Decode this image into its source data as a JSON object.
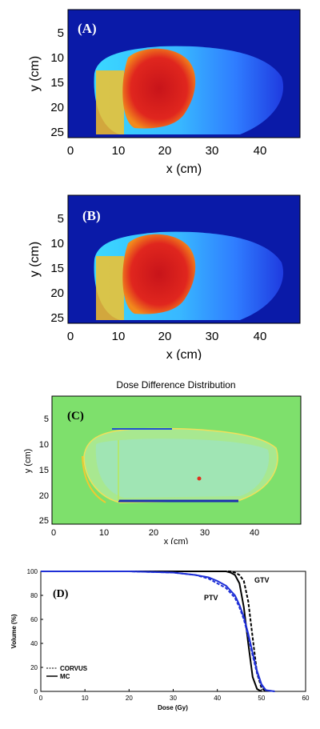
{
  "panels": {
    "a": {
      "label": "(A)",
      "xlabel": "x (cm)",
      "ylabel": "y (cm)",
      "xticks": [
        "0",
        "10",
        "20",
        "30",
        "40"
      ],
      "yticks": [
        "5",
        "10",
        "15",
        "20",
        "25"
      ]
    },
    "b": {
      "label": "(B)",
      "xlabel": "x (cm)",
      "ylabel": "y (cm)",
      "xticks": [
        "0",
        "10",
        "20",
        "30",
        "40"
      ],
      "yticks": [
        "5",
        "10",
        "15",
        "20",
        "25"
      ]
    },
    "c": {
      "label": "(C)",
      "title": "Dose Difference Distribution",
      "xlabel": "x (cm)",
      "ylabel": "y (cm)",
      "xticks": [
        "0",
        "10",
        "20",
        "30",
        "40"
      ],
      "yticks": [
        "5",
        "10",
        "15",
        "20",
        "25"
      ]
    },
    "d": {
      "label": "(D)",
      "xlabel": "Dose (Gy)",
      "ylabel": "Volume (%)",
      "xticks": [
        "0",
        "10",
        "20",
        "30",
        "40",
        "50",
        "60"
      ],
      "yticks": [
        "0",
        "20",
        "40",
        "60",
        "80",
        "100"
      ],
      "annotations": {
        "gtv": "GTV",
        "ptv": "PTV"
      },
      "legend": {
        "corvus": "CORVUS",
        "mc": "MC"
      }
    }
  },
  "colors": {
    "background_dark": "#0a1aa8",
    "body_blue": "#2f8cff",
    "body_cyan": "#3cd8ff",
    "hot_red": "#d21f1b",
    "hot_orange": "#f5a21a",
    "diff_green": "#7ee06c",
    "gtv_color": "#000000",
    "ptv_color": "#1e2fd6"
  },
  "chart_data": [
    {
      "type": "heatmap",
      "title": "",
      "xlabel": "x (cm)",
      "ylabel": "y (cm)",
      "xlim": [
        0,
        49
      ],
      "ylim": [
        1,
        26
      ],
      "y_inverted": true
    },
    {
      "type": "heatmap",
      "title": "",
      "xlabel": "x (cm)",
      "ylabel": "y (cm)",
      "xlim": [
        0,
        49
      ],
      "ylim": [
        1,
        26
      ],
      "y_inverted": true
    },
    {
      "type": "heatmap",
      "title": "Dose Difference Distribution",
      "xlabel": "x (cm)",
      "ylabel": "y (cm)",
      "xlim": [
        0,
        49
      ],
      "ylim": [
        1,
        26
      ],
      "y_inverted": true
    },
    {
      "type": "line",
      "title": "",
      "xlabel": "Dose (Gy)",
      "ylabel": "Volume (%)",
      "xlim": [
        0,
        60
      ],
      "ylim": [
        0,
        100
      ],
      "series": [
        {
          "name": "GTV MC",
          "style": "solid",
          "color": "#000000",
          "x": [
            0,
            30,
            40,
            42,
            43,
            44,
            45,
            46,
            47,
            48,
            49,
            50
          ],
          "y": [
            100,
            100,
            100,
            100,
            99,
            97,
            90,
            70,
            40,
            12,
            2,
            0
          ]
        },
        {
          "name": "GTV CORVUS",
          "style": "dashed",
          "color": "#000000",
          "x": [
            0,
            30,
            40,
            43,
            44,
            45,
            46,
            47,
            48,
            49,
            50,
            51
          ],
          "y": [
            100,
            100,
            100,
            100,
            99,
            97,
            92,
            75,
            45,
            15,
            3,
            0
          ]
        },
        {
          "name": "PTV MC",
          "style": "solid",
          "color": "#1e2fd6",
          "x": [
            0,
            20,
            30,
            35,
            38,
            40,
            42,
            44,
            45,
            46,
            47,
            48,
            49,
            50,
            51,
            53
          ],
          "y": [
            100,
            100,
            99,
            97,
            95,
            92,
            88,
            80,
            72,
            62,
            48,
            32,
            17,
            6,
            1,
            0
          ]
        },
        {
          "name": "PTV CORVUS",
          "style": "dashed",
          "color": "#1e2fd6",
          "x": [
            0,
            20,
            30,
            35,
            38,
            40,
            42,
            44,
            45,
            46,
            47,
            48,
            49,
            50,
            51,
            53
          ],
          "y": [
            100,
            100,
            99,
            97,
            94,
            90,
            86,
            78,
            70,
            60,
            46,
            30,
            15,
            5,
            1,
            0
          ]
        }
      ]
    }
  ]
}
